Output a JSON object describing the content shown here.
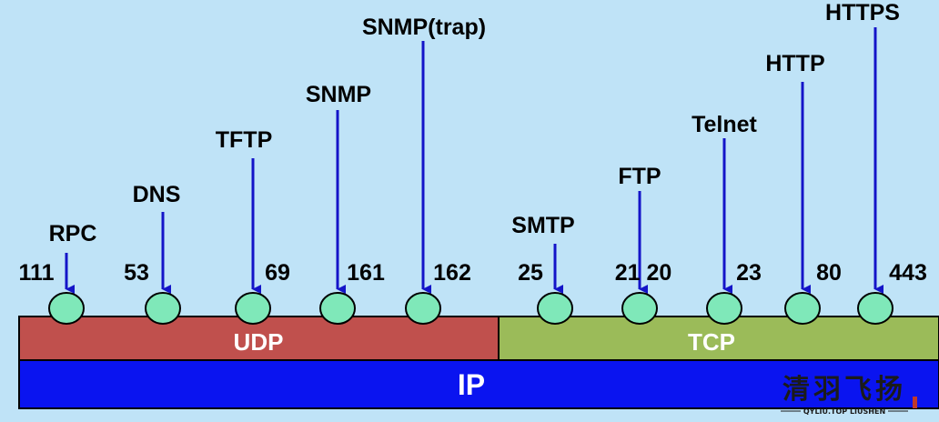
{
  "layers": {
    "udp": {
      "label": "UDP",
      "color": "#c0504d"
    },
    "tcp": {
      "label": "TCP",
      "color": "#9bbb59"
    },
    "ip": {
      "label": "IP",
      "color": "#0a14f0"
    }
  },
  "colors": {
    "background": "#bfe3f7",
    "arrow": "#1414c8",
    "port_circle": "#7fe8b9"
  },
  "udp_services": [
    {
      "protocol": "RPC",
      "port": "111"
    },
    {
      "protocol": "DNS",
      "port": "53"
    },
    {
      "protocol": "TFTP",
      "port": "69"
    },
    {
      "protocol": "SNMP",
      "port": "161"
    },
    {
      "protocol": "SNMP(trap)",
      "port": "162"
    }
  ],
  "tcp_services": [
    {
      "protocol": "SMTP",
      "port": "25"
    },
    {
      "protocol": "FTP",
      "port": "21  20"
    },
    {
      "protocol": "Telnet",
      "port": "23"
    },
    {
      "protocol": "HTTP",
      "port": "80"
    },
    {
      "protocol": "HTTPS",
      "port": "443"
    }
  ],
  "watermark": {
    "title": "清羽飞扬",
    "subtitle": "QYLIU.TOP  LIUSHEN"
  }
}
